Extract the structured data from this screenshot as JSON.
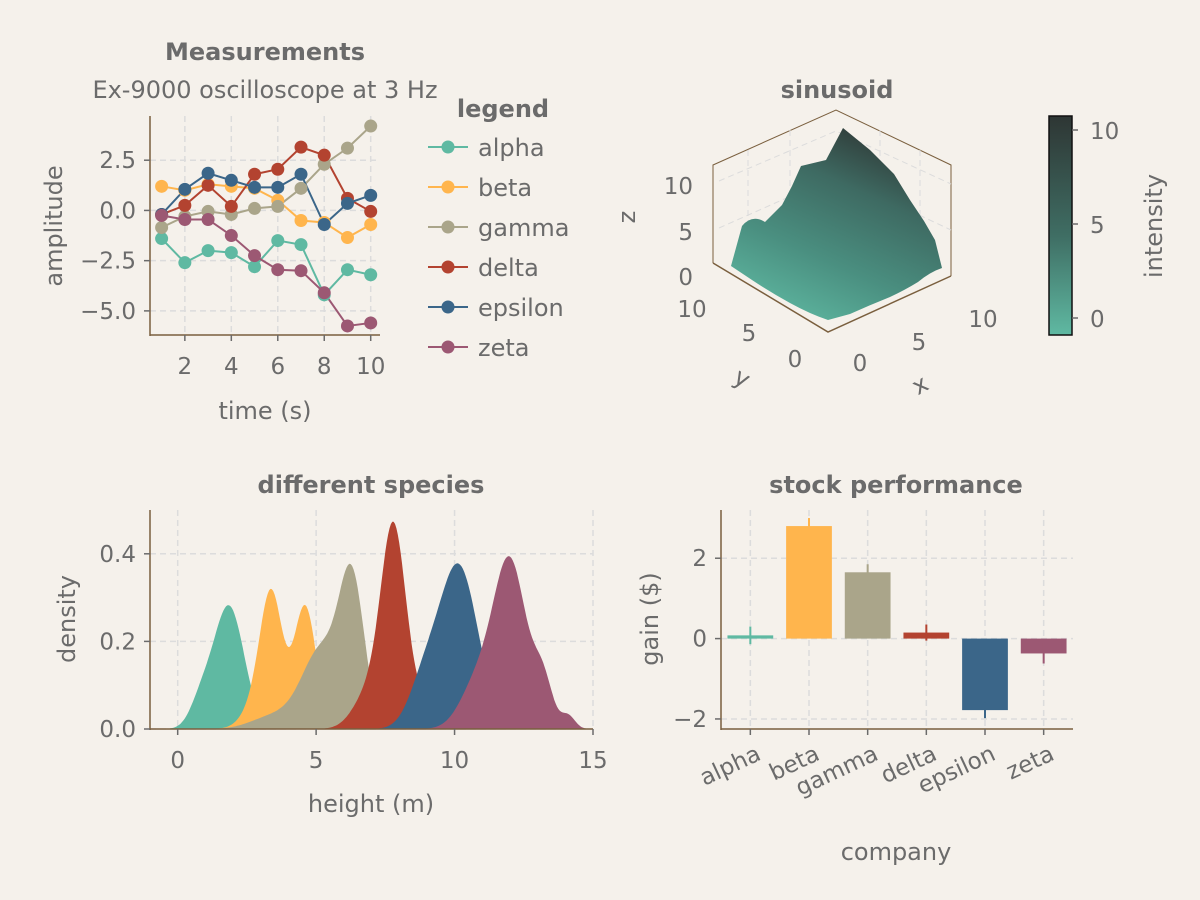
{
  "charts": [
    {
      "type": "line",
      "title": "Measurements",
      "subtitle": "Ex-9000 oscilloscope at 3 Hz",
      "xlabel": "time (s)",
      "ylabel": "amplitude",
      "xlim": [
        0.5,
        10.4
      ],
      "ylim": [
        -6.2,
        4.7
      ],
      "xticks": [
        2,
        4,
        6,
        8,
        10
      ],
      "xtick_labels": [
        "2",
        "4",
        "6",
        "8",
        "10"
      ],
      "yticks": [
        2.5,
        0,
        -2.5,
        -5
      ],
      "ytick_labels": [
        "2.5",
        "0.0",
        "−2.5",
        "−5.0"
      ],
      "grid": true,
      "legend_title": "legend",
      "legend_placement": "outside-right",
      "x": [
        1,
        2,
        3,
        4,
        5,
        6,
        7,
        8,
        9,
        10
      ],
      "series": [
        {
          "name": "alpha",
          "color": "#5fb9a2",
          "values": [
            -1.4,
            -2.6,
            -2.0,
            -2.1,
            -2.8,
            -1.5,
            -1.7,
            -4.2,
            -2.95,
            -3.2
          ]
        },
        {
          "name": "beta",
          "color": "#ffb54d",
          "values": [
            1.2,
            1.0,
            1.3,
            1.2,
            1.1,
            0.5,
            -0.5,
            -0.6,
            -1.35,
            -0.7
          ]
        },
        {
          "name": "gamma",
          "color": "#aaa58a",
          "values": [
            -0.85,
            -0.3,
            -0.05,
            -0.2,
            0.1,
            0.2,
            1.1,
            2.3,
            3.1,
            4.2
          ]
        },
        {
          "name": "delta",
          "color": "#b34330",
          "values": [
            -0.2,
            0.25,
            1.25,
            0.2,
            1.8,
            2.05,
            3.15,
            2.75,
            0.6,
            -0.05
          ]
        },
        {
          "name": "epsilon",
          "color": "#3b6689",
          "values": [
            -0.2,
            1.05,
            1.85,
            1.5,
            1.15,
            1.15,
            1.8,
            -0.7,
            0.35,
            0.75
          ]
        },
        {
          "name": "zeta",
          "color": "#9c5873",
          "values": [
            -0.25,
            -0.45,
            -0.45,
            -1.25,
            -2.25,
            -2.95,
            -3.0,
            -4.1,
            -5.75,
            -5.6
          ]
        }
      ]
    },
    {
      "type": "surface3d",
      "title": "sinusoid",
      "xlabel": "x",
      "ylabel": "y",
      "zlabel": "z",
      "x_ticks": [
        "0",
        "5",
        "10"
      ],
      "y_ticks": [
        "0",
        "5",
        "10"
      ],
      "z_ticks": [
        "0",
        "5",
        "10"
      ],
      "colorbar_label": "intensity",
      "colorbar_ticks": [
        "0",
        "5",
        "10"
      ],
      "colorbar_range": [
        -1,
        11
      ],
      "colormap": [
        "#5fb9a2",
        "#3f6e64",
        "#2e3634"
      ],
      "z_range": [
        -1,
        11
      ]
    },
    {
      "type": "area",
      "title": "different species",
      "xlabel": "height (m)",
      "ylabel": "density",
      "xlim": [
        -1,
        15
      ],
      "ylim": [
        0,
        0.5
      ],
      "xticks": [
        0,
        5,
        10,
        15
      ],
      "xtick_labels": [
        "0",
        "5",
        "10",
        "15"
      ],
      "yticks": [
        0.0,
        0.2,
        0.4
      ],
      "ytick_labels": [
        "0.0",
        "0.2",
        "0.4"
      ],
      "grid": true,
      "series": [
        {
          "color": "#5fb9a2",
          "components": [
            [
              1.85,
              0.55,
              0.28
            ],
            [
              0.85,
              0.4,
              0.06
            ]
          ]
        },
        {
          "color": "#ffb54d",
          "components": [
            [
              3.4,
              0.4,
              0.28
            ],
            [
              4.6,
              0.4,
              0.28
            ],
            [
              2.9,
              0.5,
              0.06
            ]
          ]
        },
        {
          "color": "#aaa58a",
          "components": [
            [
              6.3,
              0.45,
              0.32
            ],
            [
              5.2,
              0.7,
              0.18
            ],
            [
              3.5,
              0.8,
              0.03
            ]
          ]
        },
        {
          "color": "#b34330",
          "components": [
            [
              7.8,
              0.45,
              0.45
            ],
            [
              6.9,
              0.55,
              0.08
            ],
            [
              8.8,
              0.4,
              0.05
            ]
          ]
        },
        {
          "color": "#3b6689",
          "components": [
            [
              10.15,
              0.7,
              0.37
            ],
            [
              8.9,
              0.55,
              0.1
            ]
          ]
        },
        {
          "color": "#9c5873",
          "components": [
            [
              12.0,
              0.6,
              0.38
            ],
            [
              13.2,
              0.35,
              0.1
            ],
            [
              10.8,
              0.6,
              0.1
            ],
            [
              14.1,
              0.25,
              0.03
            ]
          ]
        }
      ]
    },
    {
      "type": "bar",
      "title": "stock performance",
      "xlabel": "company",
      "ylabel": "gain ($)",
      "ylim": [
        -2.25,
        3.2
      ],
      "yticks": [
        2,
        0,
        -2
      ],
      "ytick_labels": [
        "2",
        "0",
        "−2"
      ],
      "grid": true,
      "categories": [
        "alpha",
        "beta",
        "gamma",
        "delta",
        "epsilon",
        "zeta"
      ],
      "values": [
        0.08,
        2.8,
        1.65,
        0.15,
        -1.78,
        -0.37
      ],
      "errors": [
        0.22,
        0.2,
        0.2,
        0.2,
        0.2,
        0.25
      ],
      "colors": [
        "#5fb9a2",
        "#ffb54d",
        "#aaa58a",
        "#b34330",
        "#3b6689",
        "#9c5873"
      ]
    }
  ]
}
